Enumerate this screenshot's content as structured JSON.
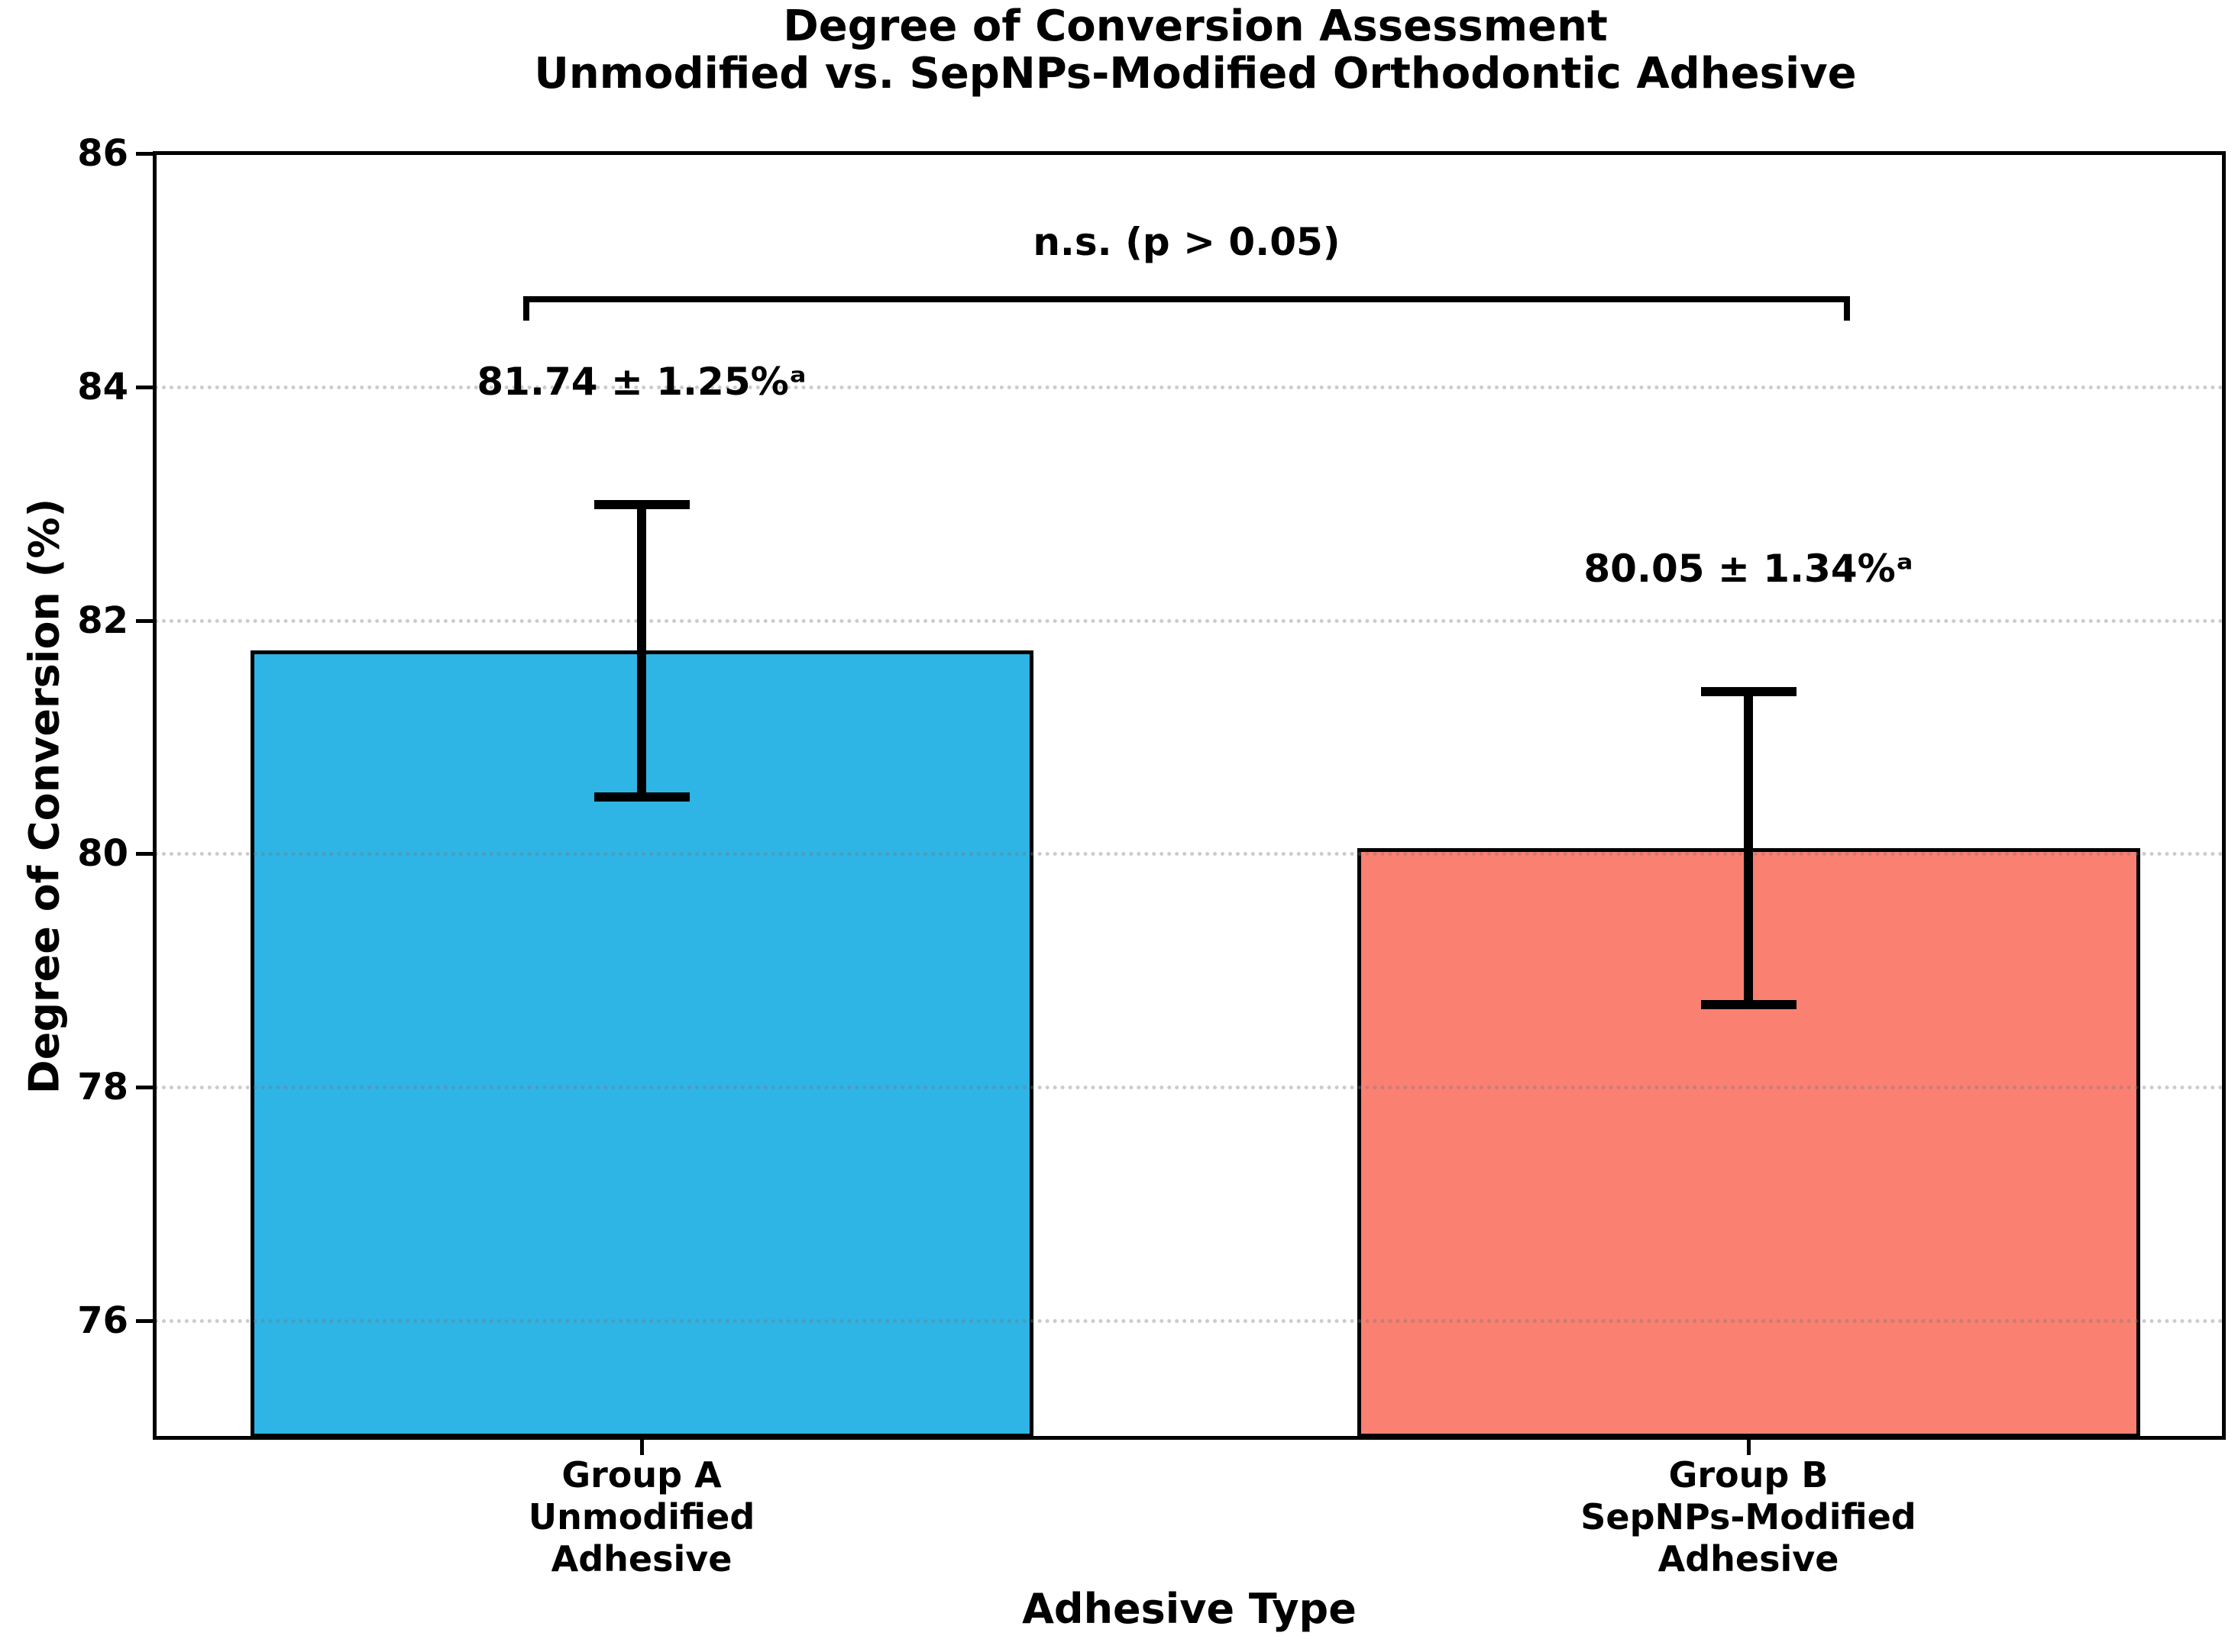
{
  "chart_data": {
    "type": "bar",
    "title": "Degree of Conversion Assessment",
    "subtitle": "Unmodified vs. SepNPs-Modified Orthodontic Adhesive",
    "xlabel": "Adhesive Type",
    "ylabel": "Degree of Conversion (%)",
    "ylim": [
      75,
      86
    ],
    "yticks": [
      76,
      78,
      80,
      82,
      84,
      86
    ],
    "grid": "horizontal-dotted",
    "legend": "none",
    "bars": [
      {
        "category_lines": [
          "Group A",
          "Unmodified",
          "Adhesive"
        ],
        "value": 81.74,
        "error": 1.25,
        "value_label": "81.74 ± 1.25%ᵃ",
        "color": "#2FB4E6"
      },
      {
        "category_lines": [
          "Group B",
          "SepNPs-Modified",
          "Adhesive"
        ],
        "value": 80.05,
        "error": 1.34,
        "value_label": "80.05 ± 1.34%ᵃ",
        "color": "#FA8072"
      }
    ],
    "significance": {
      "label": "n.s. (p > 0.05)"
    },
    "colors": {
      "bar_a": "#2FB4E6",
      "bar_b": "#FA8072",
      "axis": "#000000",
      "error_bar": "#000000",
      "grid": "#BEBEBE",
      "background": "#FFFFFF"
    }
  }
}
